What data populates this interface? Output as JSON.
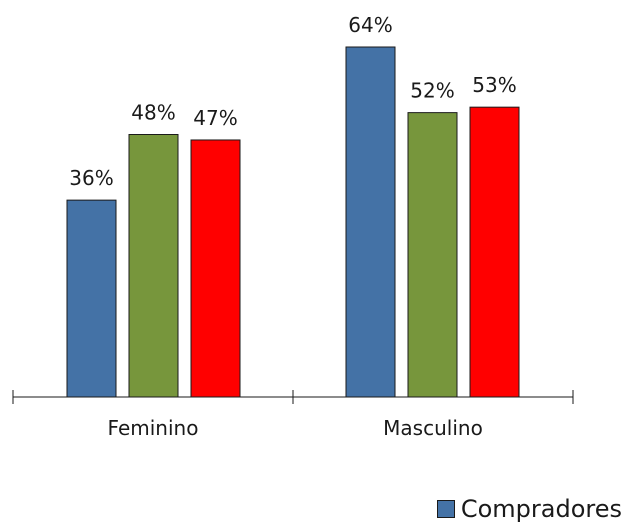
{
  "chart_data": {
    "type": "bar",
    "categories": [
      "Feminino",
      "Masculino"
    ],
    "series": [
      {
        "name": "Compradores",
        "values": [
          36,
          64
        ],
        "color": "#4472a6"
      },
      {
        "values": [
          48,
          52
        ],
        "color": "#77963c"
      },
      {
        "values": [
          47,
          53
        ],
        "color": "#ff0000"
      }
    ],
    "value_suffix": "%",
    "ylim": [
      0,
      64
    ],
    "grid": false,
    "legend_position": "bottom-right",
    "legend": [
      {
        "label": "Compradores",
        "color": "#4472a6"
      }
    ]
  }
}
